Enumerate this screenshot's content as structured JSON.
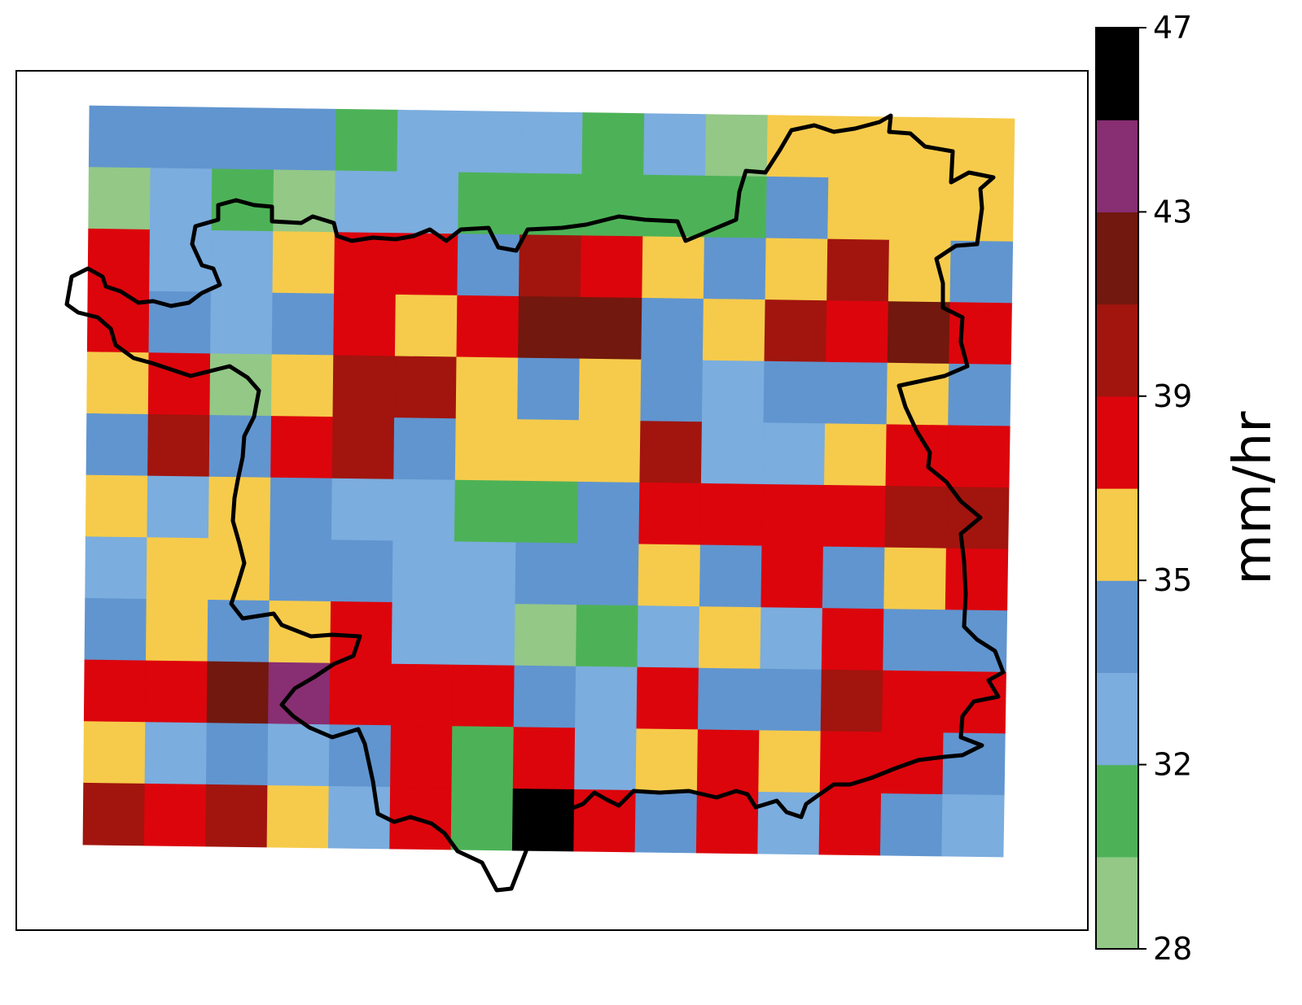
{
  "colorbar": {
    "label": "mm/hr",
    "ticks": [
      "28",
      "32",
      "35",
      "39",
      "43",
      "47"
    ],
    "bins": [
      {
        "color": "#93c887"
      },
      {
        "color": "#4db257"
      },
      {
        "color": "#7badde"
      },
      {
        "color": "#6195cf"
      },
      {
        "color": "#f6cb4b"
      },
      {
        "color": "#dc050c"
      },
      {
        "color": "#a1150e"
      },
      {
        "color": "#72180e"
      },
      {
        "color": "#882e72"
      },
      {
        "color": "#000000"
      }
    ]
  },
  "legend_key": {
    "0": "light-green",
    "1": "green",
    "2": "light-blue",
    "3": "blue",
    "4": "yellow",
    "5": "red",
    "6": "dark-red",
    "7": "maroon",
    "8": "purple",
    "9": "black"
  },
  "grid": [
    [
      3,
      3,
      3,
      3,
      1,
      2,
      2,
      2,
      1,
      2,
      0,
      4,
      4,
      4,
      4
    ],
    [
      0,
      2,
      1,
      0,
      2,
      2,
      1,
      1,
      1,
      1,
      1,
      3,
      4,
      4,
      4
    ],
    [
      5,
      2,
      2,
      4,
      5,
      5,
      3,
      6,
      5,
      4,
      3,
      4,
      6,
      4,
      3
    ],
    [
      5,
      3,
      2,
      3,
      5,
      4,
      5,
      7,
      7,
      3,
      4,
      6,
      5,
      7,
      5
    ],
    [
      4,
      5,
      0,
      4,
      6,
      6,
      4,
      3,
      4,
      3,
      2,
      3,
      3,
      4,
      3
    ],
    [
      3,
      6,
      3,
      5,
      6,
      3,
      4,
      4,
      4,
      6,
      2,
      2,
      4,
      5,
      5
    ],
    [
      4,
      2,
      4,
      3,
      2,
      2,
      1,
      1,
      3,
      5,
      5,
      5,
      5,
      6,
      6
    ],
    [
      2,
      4,
      4,
      3,
      3,
      2,
      2,
      3,
      3,
      4,
      3,
      5,
      3,
      4,
      5
    ],
    [
      3,
      4,
      3,
      4,
      5,
      2,
      2,
      0,
      1,
      2,
      4,
      2,
      5,
      3,
      3
    ],
    [
      5,
      5,
      7,
      8,
      5,
      5,
      5,
      3,
      2,
      5,
      3,
      3,
      6,
      5,
      5
    ],
    [
      4,
      2,
      3,
      2,
      3,
      5,
      1,
      5,
      2,
      4,
      5,
      4,
      5,
      5,
      3
    ],
    [
      6,
      5,
      6,
      4,
      2,
      5,
      1,
      9,
      5,
      3,
      5,
      2,
      5,
      3,
      2
    ]
  ]
}
